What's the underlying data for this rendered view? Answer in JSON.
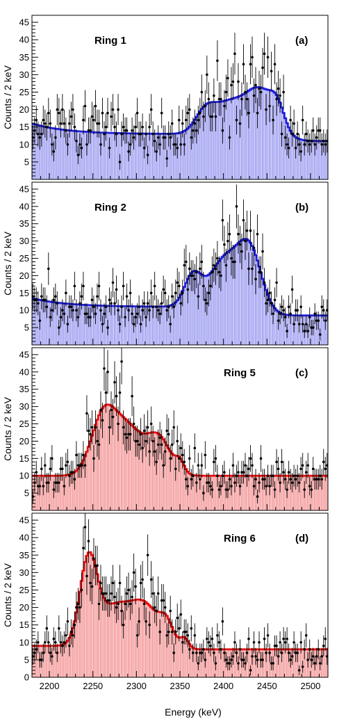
{
  "x_axis": {
    "label": "Energy (keV)",
    "min": 2180,
    "max": 2520,
    "ticks": [
      2200,
      2250,
      2300,
      2350,
      2400,
      2450,
      2500
    ]
  },
  "y_axis": {
    "label": "Counts / 2 keV",
    "min": 0,
    "max": 47,
    "ticks": [
      5,
      10,
      15,
      20,
      25,
      30,
      35,
      40,
      45
    ]
  },
  "colors": {
    "blue_line": "#1f1fe0",
    "blue_fill": "#b7b7f5",
    "red_line": "#e81010",
    "red_fill": "#f6b3b3",
    "data": "#000000"
  },
  "chart_data": [
    {
      "type": "bar",
      "panel": "a",
      "ring_label": "Ring 1",
      "panel_tag": "(a)",
      "color": "blue",
      "label_side": "left",
      "baseline_low": 13,
      "baseline_high": 11,
      "left_bump": 3,
      "peaks": [
        {
          "center": 2380,
          "width": 12,
          "amp": 7
        },
        {
          "center": 2405,
          "width": 14,
          "amp": 7
        },
        {
          "center": 2440,
          "width": 18,
          "amp": 13
        },
        {
          "center": 2462,
          "width": 8,
          "amp": 5
        }
      ],
      "edge": 2470,
      "seed": 11
    },
    {
      "type": "bar",
      "panel": "b",
      "ring_label": "Ring 2",
      "panel_tag": "(b)",
      "color": "blue",
      "label_side": "left",
      "baseline_low": 11,
      "baseline_high": 8.5,
      "left_bump": 2.5,
      "peaks": [
        {
          "center": 2365,
          "width": 10,
          "amp": 9
        },
        {
          "center": 2400,
          "width": 16,
          "amp": 13
        },
        {
          "center": 2430,
          "width": 14,
          "amp": 17
        }
      ],
      "edge": 2440,
      "seed": 23
    },
    {
      "type": "bar",
      "panel": "c",
      "ring_label": "Ring 5",
      "panel_tag": "(c)",
      "color": "red",
      "label_side": "right",
      "baseline_low": 10,
      "baseline_high": 10,
      "left_bump": 0,
      "peaks": [
        {
          "center": 2262,
          "width": 14,
          "amp": 17
        },
        {
          "center": 2290,
          "width": 16,
          "amp": 13
        },
        {
          "center": 2325,
          "width": 14,
          "amp": 11
        },
        {
          "center": 2350,
          "width": 5,
          "amp": 3
        }
      ],
      "edge": 2345,
      "seed": 37
    },
    {
      "type": "bar",
      "panel": "d",
      "ring_label": "Ring 6",
      "panel_tag": "(d)",
      "color": "red",
      "label_side": "right",
      "baseline_low": 9,
      "baseline_high": 8,
      "left_bump": 0,
      "peaks": [
        {
          "center": 2245,
          "width": 10,
          "amp": 24
        },
        {
          "center": 2275,
          "width": 18,
          "amp": 11
        },
        {
          "center": 2310,
          "width": 16,
          "amp": 11
        },
        {
          "center": 2335,
          "width": 8,
          "amp": 6
        },
        {
          "center": 2355,
          "width": 5,
          "amp": 3
        }
      ],
      "edge": 2330,
      "seed": 53
    }
  ]
}
